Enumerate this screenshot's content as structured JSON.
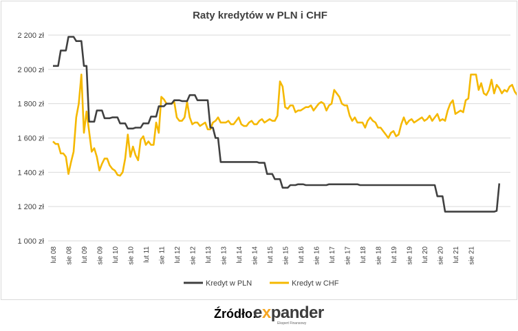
{
  "chart_data": {
    "type": "line",
    "title": "Raty kredytów w PLN i CHF",
    "xlabel": "",
    "ylabel": "",
    "ylim": [
      1000,
      2200
    ],
    "yticks": [
      1000,
      1200,
      1400,
      1600,
      1800,
      2000,
      2200
    ],
    "ytick_labels": [
      "1 000 zł",
      "1 200 zł",
      "1 400 zł",
      "1 600 zł",
      "1 800 zł",
      "2 000 zł",
      "2 200 zł"
    ],
    "x_start": "lut 08",
    "x_step_months": 1,
    "xtick_labels": [
      "lut 08",
      "sie 08",
      "lut 09",
      "sie 09",
      "lut 10",
      "sie 10",
      "lut 11",
      "sie 11",
      "lut 12",
      "sie 12",
      "lut 13",
      "sie 13",
      "lut 14",
      "sie 14",
      "lut 15",
      "sie 15",
      "lut 16",
      "sie 16",
      "lut 17",
      "sie 17",
      "lut 18",
      "sie 18",
      "lut 19",
      "sie 19",
      "lut 20",
      "sie 20",
      "lut 21",
      "sie 21"
    ],
    "grid": true,
    "legend": "bottom",
    "series": [
      {
        "name": "Kredyt w PLN",
        "color": "#404040",
        "values": [
          2020,
          2020,
          2020,
          2110,
          2110,
          2110,
          2190,
          2190,
          2190,
          2165,
          2165,
          2165,
          2020,
          2020,
          1695,
          1695,
          1695,
          1760,
          1760,
          1760,
          1715,
          1715,
          1715,
          1720,
          1720,
          1720,
          1685,
          1685,
          1685,
          1655,
          1655,
          1655,
          1660,
          1660,
          1660,
          1685,
          1685,
          1685,
          1725,
          1725,
          1725,
          1785,
          1785,
          1785,
          1800,
          1800,
          1800,
          1820,
          1820,
          1820,
          1815,
          1815,
          1815,
          1850,
          1850,
          1850,
          1820,
          1820,
          1820,
          1820,
          1820,
          1660,
          1660,
          1600,
          1600,
          1460,
          1460,
          1460,
          1460,
          1460,
          1460,
          1460,
          1460,
          1460,
          1460,
          1460,
          1460,
          1460,
          1460,
          1460,
          1455,
          1455,
          1455,
          1390,
          1390,
          1390,
          1360,
          1360,
          1360,
          1310,
          1310,
          1310,
          1325,
          1325,
          1325,
          1330,
          1330,
          1330,
          1325,
          1325,
          1325,
          1325,
          1325,
          1325,
          1325,
          1325,
          1325,
          1330,
          1330,
          1330,
          1330,
          1330,
          1330,
          1330,
          1330,
          1330,
          1330,
          1330,
          1330,
          1325,
          1325,
          1325,
          1325,
          1325,
          1325,
          1325,
          1325,
          1325,
          1325,
          1325,
          1325,
          1325,
          1325,
          1325,
          1325,
          1325,
          1325,
          1325,
          1325,
          1325,
          1325,
          1325,
          1325,
          1325,
          1325,
          1325,
          1325,
          1325,
          1325,
          1260,
          1260,
          1260,
          1170,
          1170,
          1170,
          1170,
          1170,
          1170,
          1170,
          1170,
          1170,
          1170,
          1170,
          1170,
          1170,
          1170,
          1170,
          1170,
          1170,
          1170,
          1170,
          1170,
          1175,
          1335
        ]
      },
      {
        "name": "Kredyt w CHF",
        "color": "#f5b800",
        "values": [
          1580,
          1565,
          1565,
          1510,
          1510,
          1490,
          1390,
          1460,
          1520,
          1720,
          1800,
          1970,
          1630,
          1755,
          1640,
          1520,
          1540,
          1490,
          1410,
          1450,
          1480,
          1480,
          1440,
          1420,
          1410,
          1385,
          1380,
          1400,
          1480,
          1620,
          1490,
          1550,
          1500,
          1470,
          1590,
          1610,
          1560,
          1580,
          1560,
          1560,
          1690,
          1630,
          1840,
          1825,
          1800,
          1800,
          1800,
          1810,
          1720,
          1700,
          1700,
          1720,
          1810,
          1720,
          1680,
          1690,
          1690,
          1670,
          1680,
          1690,
          1650,
          1650,
          1690,
          1700,
          1720,
          1690,
          1690,
          1690,
          1700,
          1680,
          1680,
          1700,
          1720,
          1680,
          1670,
          1670,
          1690,
          1700,
          1680,
          1680,
          1700,
          1710,
          1690,
          1700,
          1710,
          1700,
          1700,
          1730,
          1930,
          1900,
          1780,
          1770,
          1790,
          1790,
          1750,
          1760,
          1760,
          1770,
          1780,
          1780,
          1790,
          1760,
          1780,
          1800,
          1810,
          1800,
          1760,
          1790,
          1800,
          1880,
          1860,
          1840,
          1800,
          1790,
          1790,
          1730,
          1700,
          1720,
          1690,
          1690,
          1690,
          1660,
          1700,
          1720,
          1700,
          1690,
          1660,
          1660,
          1640,
          1620,
          1600,
          1630,
          1640,
          1610,
          1620,
          1680,
          1720,
          1680,
          1700,
          1710,
          1690,
          1700,
          1710,
          1720,
          1700,
          1710,
          1730,
          1700,
          1720,
          1740,
          1700,
          1710,
          1700,
          1760,
          1800,
          1820,
          1740,
          1750,
          1760,
          1750,
          1820,
          1830,
          1970,
          1970,
          1970,
          1880,
          1920,
          1860,
          1850,
          1880,
          1940,
          1860,
          1910,
          1890,
          1860,
          1880,
          1870,
          1900,
          1910,
          1870,
          1850,
          1860,
          1930,
          1880,
          1900,
          1960,
          2020
        ]
      }
    ]
  },
  "footer": {
    "source_label": "Źródło:",
    "brand_pre": "e",
    "brand_x": "x",
    "brand_post": "pander",
    "brand_sub": "Ekspert Finansowy"
  }
}
